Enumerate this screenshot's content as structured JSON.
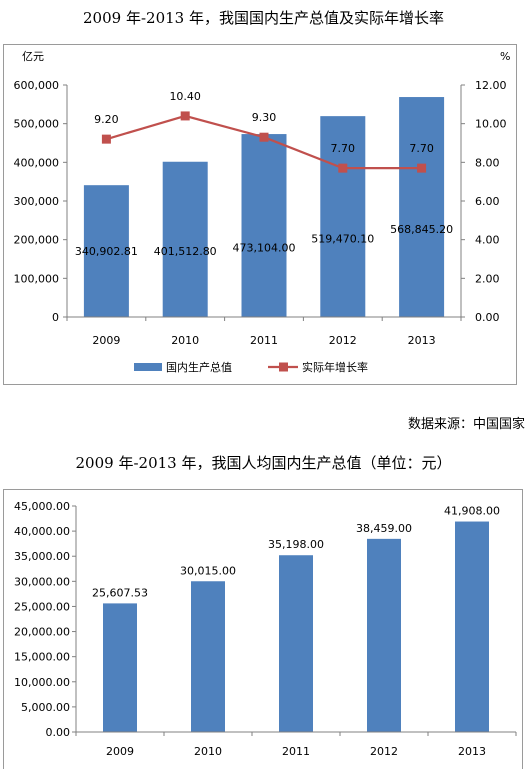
{
  "chart1_title": "2009 年-2013 年，我国国内生产总值及实际年增长率",
  "source": "数据来源：中国国家",
  "chart2_title": "2009 年-2013 年，我国人均国内生产总值（单位：元）",
  "chart_data": [
    {
      "type": "bar",
      "title": "2009 年-2013 年，我国国内生产总值及实际年增长率",
      "categories": [
        "2009",
        "2010",
        "2011",
        "2012",
        "2013"
      ],
      "ylabel": "亿元",
      "y2label": "%",
      "ylim": [
        0,
        600000
      ],
      "y2lim": [
        0,
        12
      ],
      "yticks": [
        "0",
        "100,000",
        "200,000",
        "300,000",
        "400,000",
        "500,000",
        "600,000"
      ],
      "y2ticks": [
        "0.00",
        "2.00",
        "4.00",
        "6.00",
        "8.00",
        "10.00",
        "12.00"
      ],
      "series": [
        {
          "name": "国内生产总值",
          "type": "bar",
          "color": "#4f81bd",
          "values": [
            340902.81,
            401512.8,
            473104.0,
            519470.1,
            568845.2
          ],
          "labels": [
            "340,902.81",
            "401,512.80",
            "473,104.00",
            "519,470.10",
            "568,845.20"
          ]
        },
        {
          "name": "实际年增长率",
          "type": "line",
          "axis": "right",
          "color": "#c0504d",
          "values": [
            9.2,
            10.4,
            9.3,
            7.7,
            7.7
          ],
          "labels": [
            "9.20",
            "10.40",
            "9.30",
            "7.70",
            "7.70"
          ]
        }
      ],
      "legend": "bottom",
      "grid": false
    },
    {
      "type": "bar",
      "title": "2009 年-2013 年，我国人均国内生产总值（单位：元）",
      "categories": [
        "2009",
        "2010",
        "2011",
        "2012",
        "2013"
      ],
      "ylim": [
        0,
        45000
      ],
      "yticks": [
        "0.00",
        "5,000.00",
        "10,000.00",
        "15,000.00",
        "20,000.00",
        "25,000.00",
        "30,000.00",
        "35,000.00",
        "40,000.00",
        "45,000.00"
      ],
      "values": [
        25607.53,
        30015.0,
        35198.0,
        38459.0,
        41908.0
      ],
      "labels": [
        "25,607.53",
        "30,015.00",
        "35,198.00",
        "38,459.00",
        "41,908.00"
      ],
      "color": "#4f81bd",
      "grid": false
    }
  ]
}
